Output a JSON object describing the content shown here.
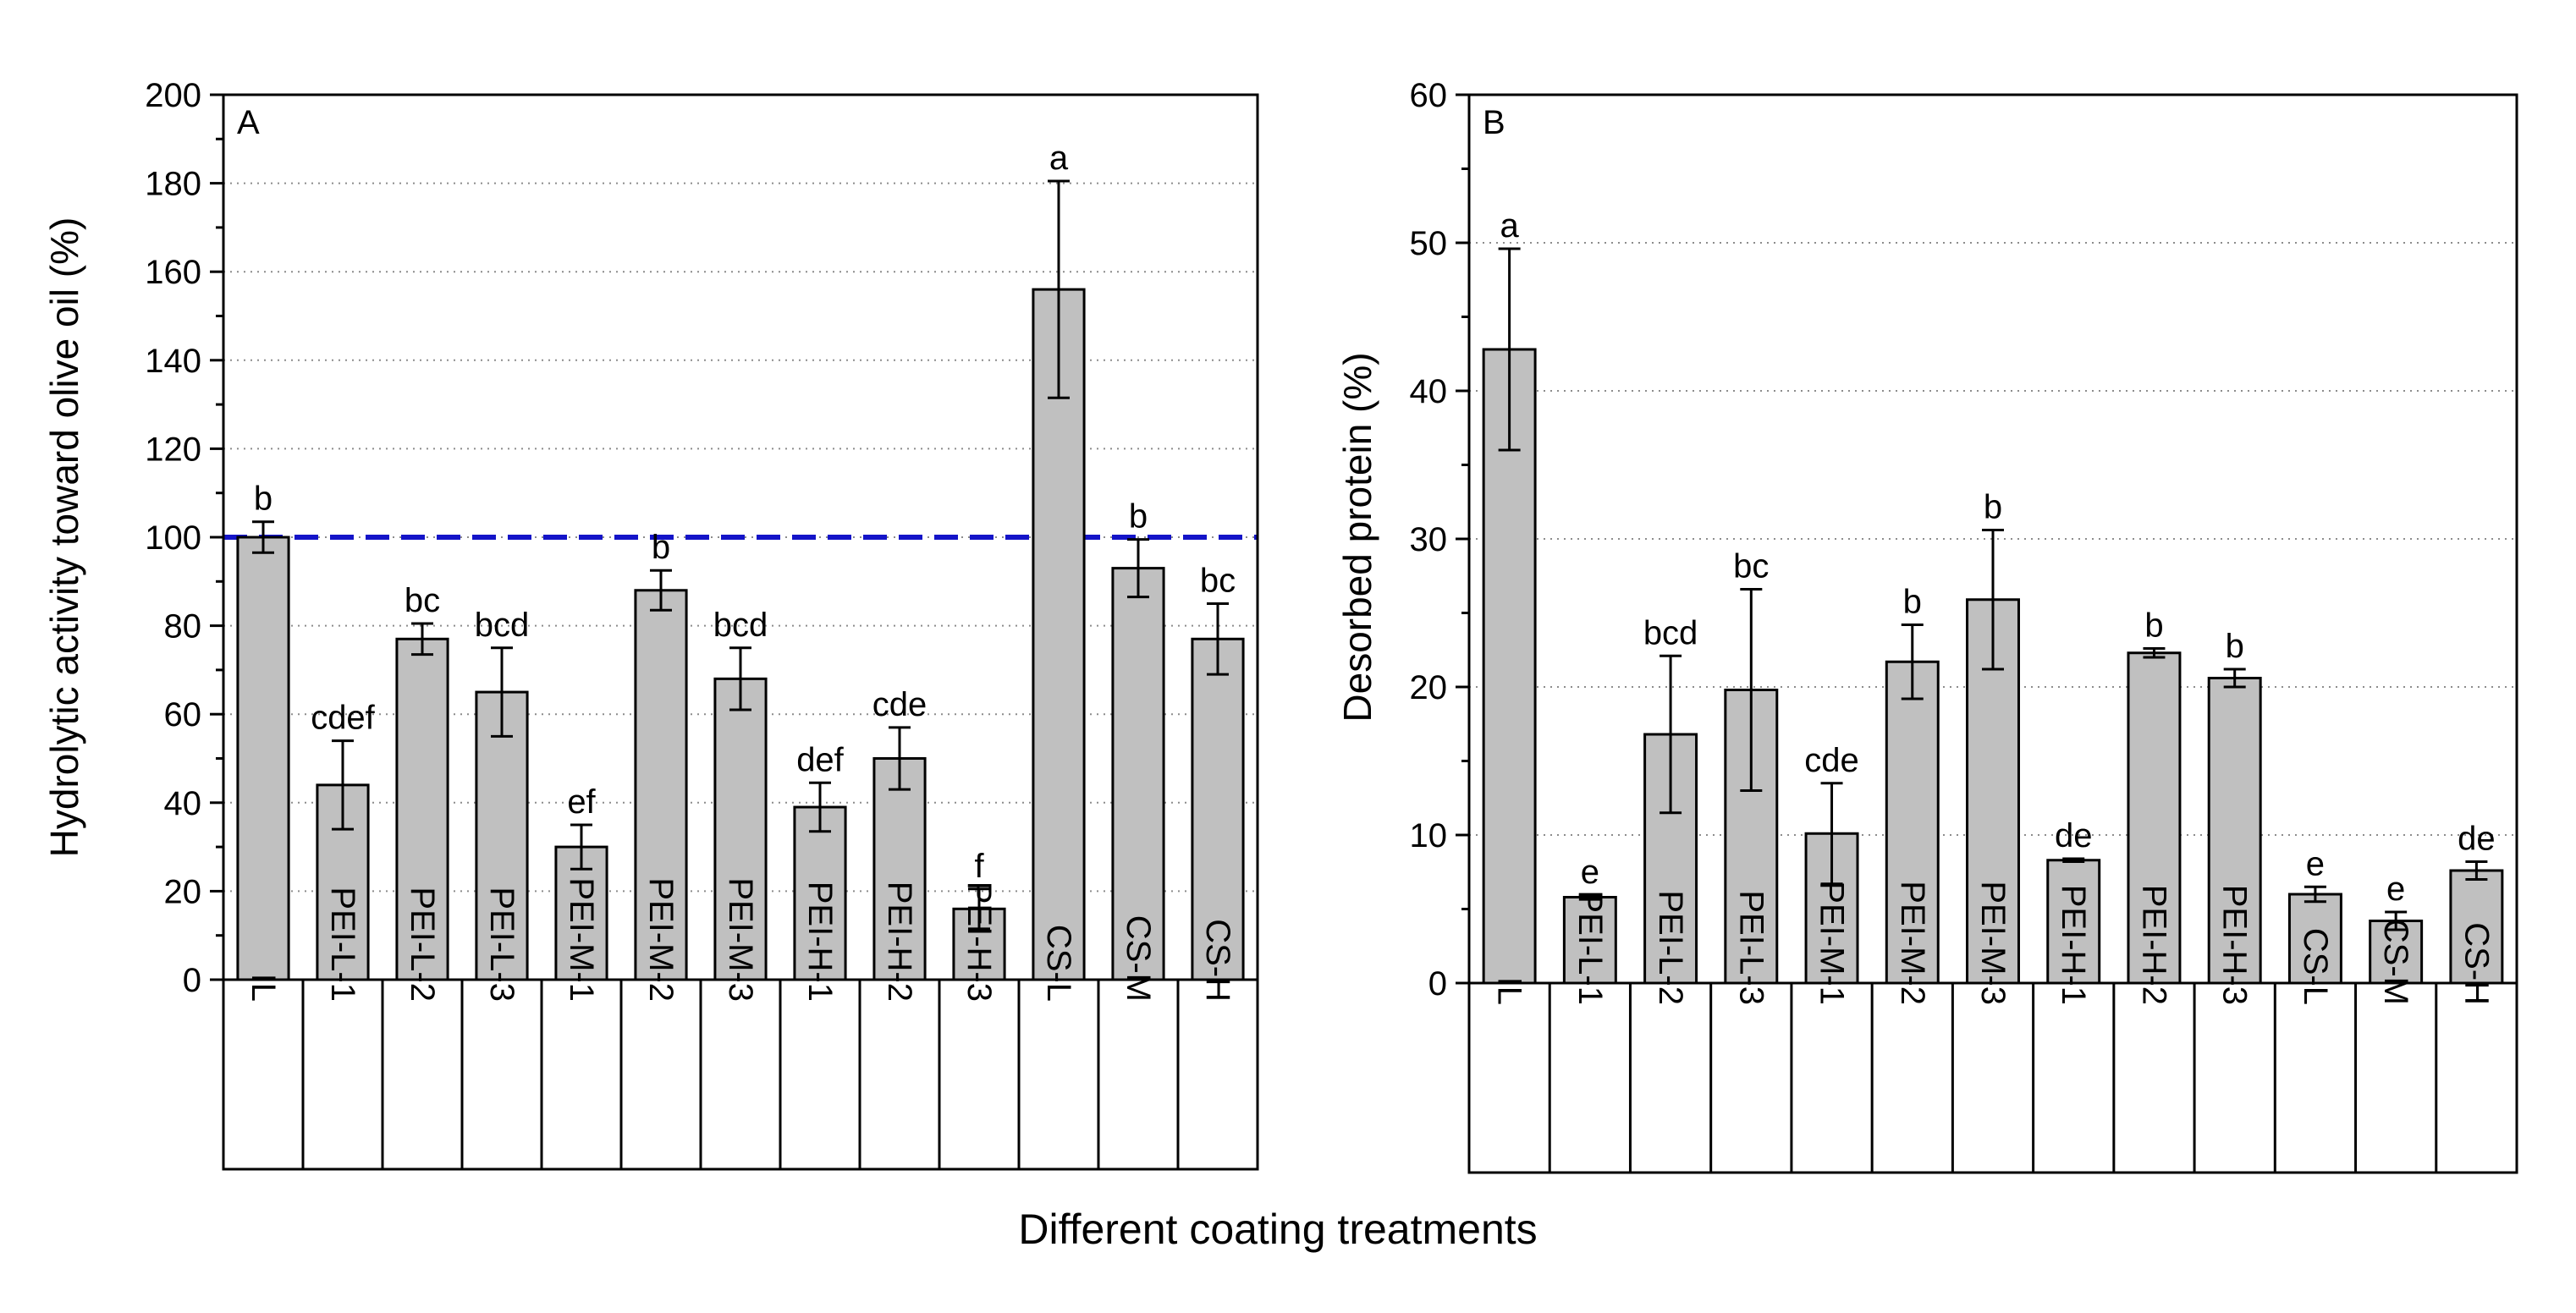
{
  "figure": {
    "xlabel": "Different coating treatments",
    "colors": {
      "bar_fill": "#c0c0c0",
      "reference_line": "#1414c8",
      "axis": "#000000",
      "grid": "#8c8c8c"
    }
  },
  "chart_data": [
    {
      "type": "bar",
      "panel_label": "A",
      "ylabel": "Hydrolytic activity toward olive oil (%)",
      "ylim": [
        0,
        200
      ],
      "yticks": [
        "0",
        "20",
        "40",
        "60",
        "80",
        "100",
        "120",
        "140",
        "160",
        "180",
        "200"
      ],
      "grid": "horizontal dotted",
      "reference_line": {
        "y": 100,
        "style": "dashed",
        "color": "#1414c8"
      },
      "categories": [
        "IL",
        "PEI-L-1",
        "PEI-L-2",
        "PEI-L-3",
        "PEI-M-1",
        "PEI-M-2",
        "PEI-M-3",
        "PEI-H-1",
        "PEI-H-2",
        "PEI-H-3",
        "CS-L",
        "CS-M",
        "CS-H"
      ],
      "values": [
        100,
        44,
        77,
        65,
        30,
        88,
        68,
        39,
        50,
        16,
        156,
        93,
        77
      ],
      "errors": [
        3.5,
        10,
        3.5,
        10,
        5,
        4.5,
        7,
        5.5,
        7,
        4.5,
        24.5,
        6.5,
        8
      ],
      "letters": [
        "b",
        "cdef",
        "bc",
        "bcd",
        "ef",
        "b",
        "bcd",
        "def",
        "cde",
        "f",
        "a",
        "b",
        "bc"
      ]
    },
    {
      "type": "bar",
      "panel_label": "B",
      "ylabel": "Desorbed protein (%)",
      "ylim": [
        0,
        60
      ],
      "yticks": [
        "0",
        "10",
        "20",
        "30",
        "40",
        "50",
        "60"
      ],
      "grid": "horizontal dotted",
      "categories": [
        "IL",
        "PEI-L-1",
        "PEI-L-2",
        "PEI-L-3",
        "PEI-M-1",
        "PEI-M-2",
        "PEI-M-3",
        "PEI-H-1",
        "PEI-H-2",
        "PEI-H-3",
        "CS-L",
        "CS-M",
        "CS-H"
      ],
      "values": [
        42.8,
        5.8,
        16.8,
        19.8,
        10.1,
        21.7,
        25.9,
        8.3,
        22.3,
        20.6,
        6.0,
        4.2,
        7.6
      ],
      "errors": [
        6.8,
        0.15,
        5.3,
        6.8,
        3.4,
        2.5,
        4.7,
        0.1,
        0.3,
        0.6,
        0.5,
        0.6,
        0.6
      ],
      "letters": [
        "a",
        "e",
        "bcd",
        "bc",
        "cde",
        "b",
        "b",
        "de",
        "b",
        "b",
        "e",
        "e",
        "de"
      ]
    }
  ]
}
